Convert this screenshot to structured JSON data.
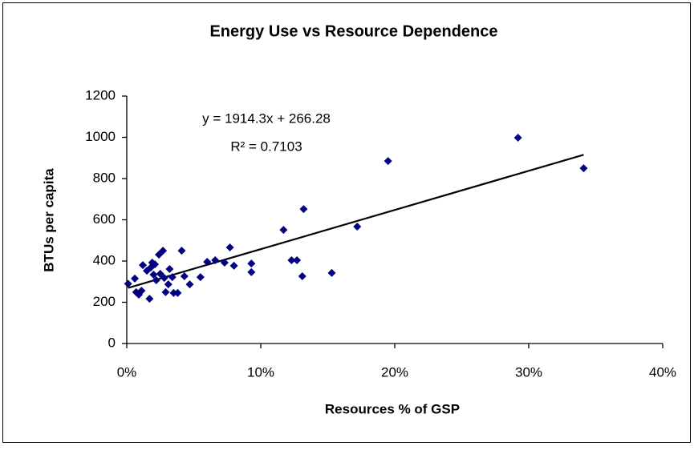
{
  "chart_data": {
    "type": "scatter",
    "title": "Energy Use vs Resource Dependence",
    "x_label": "Resources % of GSP",
    "y_label": "BTUs per capita",
    "annotations": [
      "y = 1914.3x + 266.28",
      "R² = 0.7103"
    ],
    "xlim": [
      0,
      40
    ],
    "xticks": [
      {
        "value": 0,
        "label": "0%"
      },
      {
        "value": 10,
        "label": "10%"
      },
      {
        "value": 20,
        "label": "20%"
      },
      {
        "value": 30,
        "label": "30%"
      },
      {
        "value": 40,
        "label": "40%"
      }
    ],
    "ylim": [
      0,
      1200
    ],
    "yticks": [
      0,
      200,
      400,
      600,
      800,
      1000,
      1200
    ],
    "grid": false,
    "color": "#000080",
    "trendline": true,
    "series": [
      {
        "color": "#000080",
        "x": [
          0.1,
          0.6,
          0.7,
          0.9,
          1.1,
          1.2,
          1.5,
          1.7,
          1.8,
          1.9,
          2.0,
          2.1,
          2.2,
          2.4,
          2.5,
          2.7,
          2.8,
          2.9,
          3.1,
          3.2,
          3.4,
          3.5,
          3.8,
          4.1,
          4.3,
          4.7,
          5.5,
          6.0,
          6.6,
          7.3,
          7.7,
          8.0,
          9.3,
          9.3,
          11.7,
          12.3,
          12.7,
          13.1,
          13.2,
          15.3,
          17.2,
          19.5,
          29.2,
          34.1
        ],
        "values": [
          290,
          315,
          249,
          237,
          256,
          380,
          353,
          217,
          369,
          392,
          334,
          384,
          307,
          431,
          338,
          450,
          318,
          249,
          287,
          361,
          322,
          245,
          245,
          450,
          326,
          287,
          322,
          396,
          404,
          392,
          466,
          377,
          388,
          346,
          551,
          404,
          404,
          326,
          652,
          342,
          567,
          885,
          998,
          850
        ]
      }
    ]
  }
}
